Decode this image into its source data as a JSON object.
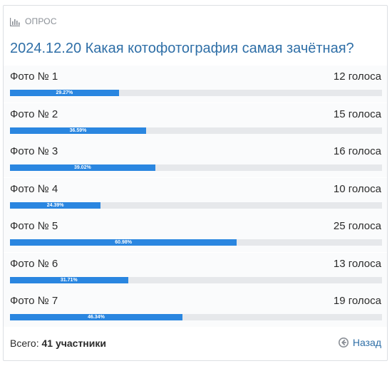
{
  "poll": {
    "header_label": "ОПРОС",
    "title": "2024.12.20 Какая котофотография самая зачётная?",
    "options": [
      {
        "name": "Фото № 1",
        "votes": "12 голоса",
        "percent_label": "29.27%",
        "percent": 29.27
      },
      {
        "name": "Фото № 2",
        "votes": "15 голоса",
        "percent_label": "36.59%",
        "percent": 36.59
      },
      {
        "name": "Фото № 3",
        "votes": "16 голоса",
        "percent_label": "39.02%",
        "percent": 39.02
      },
      {
        "name": "Фото № 4",
        "votes": "10 голоса",
        "percent_label": "24.39%",
        "percent": 24.39
      },
      {
        "name": "Фото № 5",
        "votes": "25 голоса",
        "percent_label": "60.98%",
        "percent": 60.98
      },
      {
        "name": "Фото № 6",
        "votes": "13 голоса",
        "percent_label": "31.71%",
        "percent": 31.71
      },
      {
        "name": "Фото № 7",
        "votes": "19 голоса",
        "percent_label": "46.34%",
        "percent": 46.34
      }
    ],
    "total_prefix": "Всего:",
    "total_count": "41 участники",
    "back_label": "Назад"
  },
  "colors": {
    "accent": "#2a86e0",
    "title": "#2f6fa7",
    "track": "#e6e8eb"
  },
  "icons": {
    "header": "bar-chart-icon",
    "back": "circle-arrow-left-icon"
  }
}
